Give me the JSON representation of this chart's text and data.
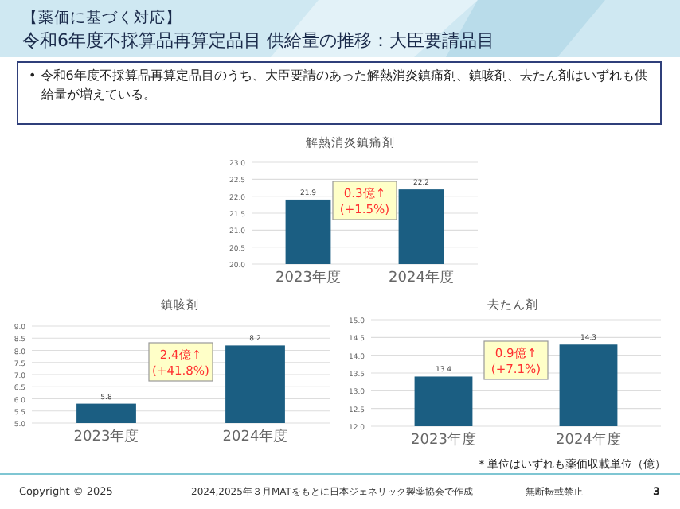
{
  "chart_data": [
    {
      "type": "other",
      "subtitle": "【薬価に基づく対応】",
      "title": "令和6年度不採算品再算定品目 供給量の推移：大臣要請品目",
      "annotations": [
        "• 令和6年度不採算品再算定品目のうち、大臣要請のあった解熱消炎鎮痛剤、鎮咳剤、去たん剤はいずれも供給量が増えている。",
        "＊単位はいずれも薬価収載単位（億）",
        "Copyright © 2025",
        "2024,2025年３月MATをもとに日本ジェネリック製薬協会で作成",
        "無断転載禁止",
        "3"
      ]
    },
    {
      "type": "bar",
      "title": "解熱消炎鎮痛剤",
      "categories": [
        "2023年度",
        "2024年度"
      ],
      "values": [
        21.9,
        22.2
      ],
      "color": "#1b5e82",
      "ylim": [
        20.0,
        23.0
      ],
      "yticks": [
        {
          "value": 20,
          "label": "20.0"
        },
        {
          "value": 20.5,
          "label": "20.5"
        },
        {
          "value": 21,
          "label": "21.0"
        },
        {
          "value": 21.5,
          "label": "21.5"
        },
        {
          "value": 22,
          "label": "22.0"
        },
        {
          "value": 22.5,
          "label": "22.5"
        },
        {
          "value": 23,
          "label": "23.0"
        }
      ],
      "grid": "y",
      "data_labels": true,
      "annotations": [
        "0.3億↑\n(+1.5%)"
      ]
    },
    {
      "type": "bar",
      "title": "鎮咳剤",
      "categories": [
        "2023年度",
        "2024年度"
      ],
      "values": [
        5.8,
        8.2
      ],
      "color": "#1b5e82",
      "ylim": [
        5.0,
        9.0
      ],
      "yticks": [
        {
          "value": 5,
          "label": "5.0"
        },
        5.5,
        {
          "value": 6,
          "label": "6.0"
        },
        6.5,
        {
          "value": 7,
          "label": "7.0"
        },
        7.5,
        {
          "value": 8,
          "label": "8.0"
        },
        8.5,
        {
          "value": 9,
          "label": "9.0"
        }
      ],
      "grid": "y",
      "data_labels": true,
      "annotations": [
        "2.4億↑\n(+41.8%)"
      ]
    },
    {
      "type": "bar",
      "title": "去たん剤",
      "categories": [
        "2023年度",
        "2024年度"
      ],
      "values": [
        13.4,
        14.3
      ],
      "color": "#1b5e82",
      "ylim": [
        12.0,
        15.0
      ],
      "yticks": [
        {
          "value": 12,
          "label": "12.0"
        },
        12.5,
        {
          "value": 13,
          "label": "13.0"
        },
        13.5,
        {
          "value": 14,
          "label": "14.0"
        },
        14.5,
        {
          "value": 15,
          "label": "15.0"
        }
      ],
      "grid": "y",
      "data_labels": true,
      "annotations": [
        "0.9億↑\n(+7.1%)"
      ]
    }
  ]
}
